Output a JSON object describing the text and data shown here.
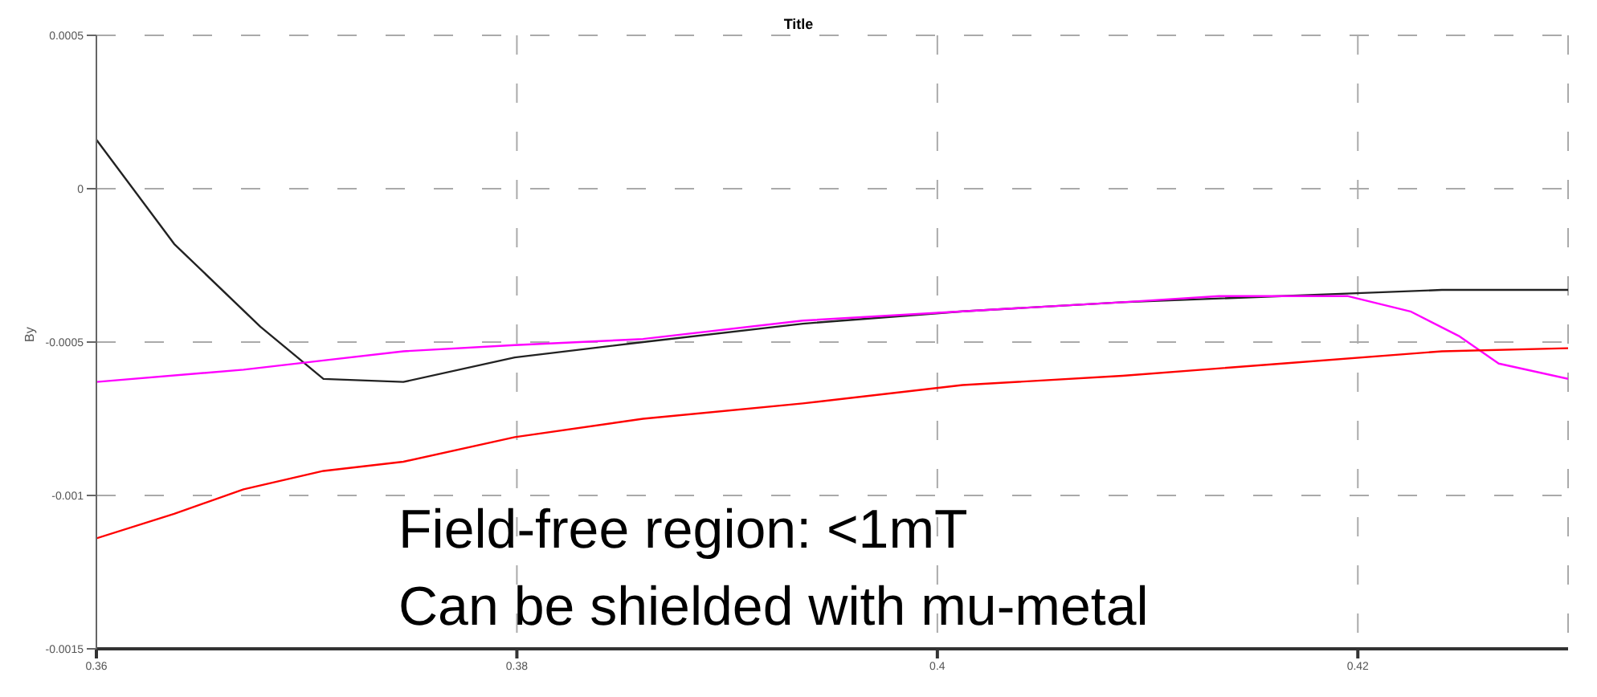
{
  "chart_data": {
    "type": "line",
    "title": "Title",
    "ylabel": "By",
    "x": [
      0.36,
      0.3637,
      0.367,
      0.3678,
      0.3708,
      0.3746,
      0.3799,
      0.386,
      0.3936,
      0.4012,
      0.4088,
      0.4134,
      0.4164,
      0.4195,
      0.4202,
      0.4225,
      0.424,
      0.4248,
      0.4267,
      0.43
    ],
    "series": [
      {
        "color": "#222222",
        "values": [
          0.00016,
          -0.00018,
          null,
          -0.00045,
          -0.00062,
          -0.00063,
          -0.00055,
          -0.0005,
          -0.00044,
          -0.0004,
          -0.00037,
          null,
          -0.00035,
          null,
          -0.00034,
          null,
          -0.00033,
          null,
          null,
          -0.00033
        ]
      },
      {
        "color": "#ff00ff",
        "values": [
          -0.00063,
          null,
          -0.00059,
          null,
          -0.00056,
          -0.00053,
          -0.00051,
          -0.00049,
          -0.00043,
          -0.0004,
          -0.00037,
          -0.00035,
          null,
          -0.00035,
          null,
          -0.0004,
          null,
          -0.00048,
          -0.00057,
          -0.00062
        ]
      },
      {
        "color": "#ff0000",
        "values": [
          -0.00114,
          -0.00106,
          -0.00098,
          null,
          -0.00092,
          -0.00089,
          -0.00081,
          -0.00075,
          -0.0007,
          -0.00064,
          -0.00061,
          null,
          -0.00057,
          null,
          null,
          null,
          -0.00053,
          null,
          null,
          -0.00052
        ]
      }
    ],
    "xlim": [
      0.36,
      0.43
    ],
    "xticks": [
      0.36,
      0.38,
      0.4,
      0.42
    ],
    "ylim": [
      -0.0015,
      0.0005
    ],
    "yticks": [
      -0.0015,
      -0.001,
      -0.0005,
      0,
      0.0005
    ],
    "grid": true,
    "marker": "none",
    "line_style": "solid",
    "annotations": [
      "Field-free region: <1mT",
      "Can be shielded with mu-metal"
    ]
  }
}
